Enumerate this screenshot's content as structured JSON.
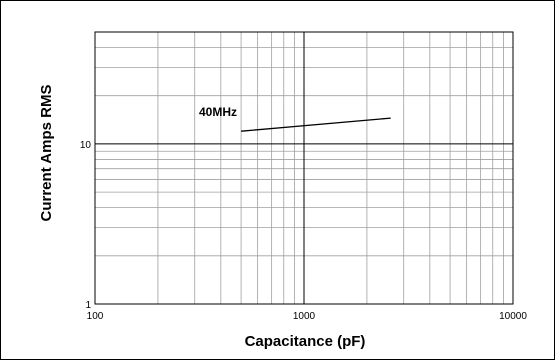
{
  "chart_data": {
    "type": "line",
    "title": "",
    "xlabel": "Capacitance (pF)",
    "ylabel": "Current Amps RMS",
    "x_scale": "log",
    "y_scale": "log",
    "xlim": [
      100,
      10000
    ],
    "ylim": [
      1,
      50
    ],
    "x_ticks": [
      "100",
      "1000",
      "10000"
    ],
    "y_ticks": [
      "1",
      "10"
    ],
    "grid": true,
    "legend": "none",
    "line_color": "#000000",
    "series": [
      {
        "name": "40MHz",
        "x": [
          500,
          2600
        ],
        "y": [
          12.0,
          14.5
        ]
      }
    ]
  }
}
